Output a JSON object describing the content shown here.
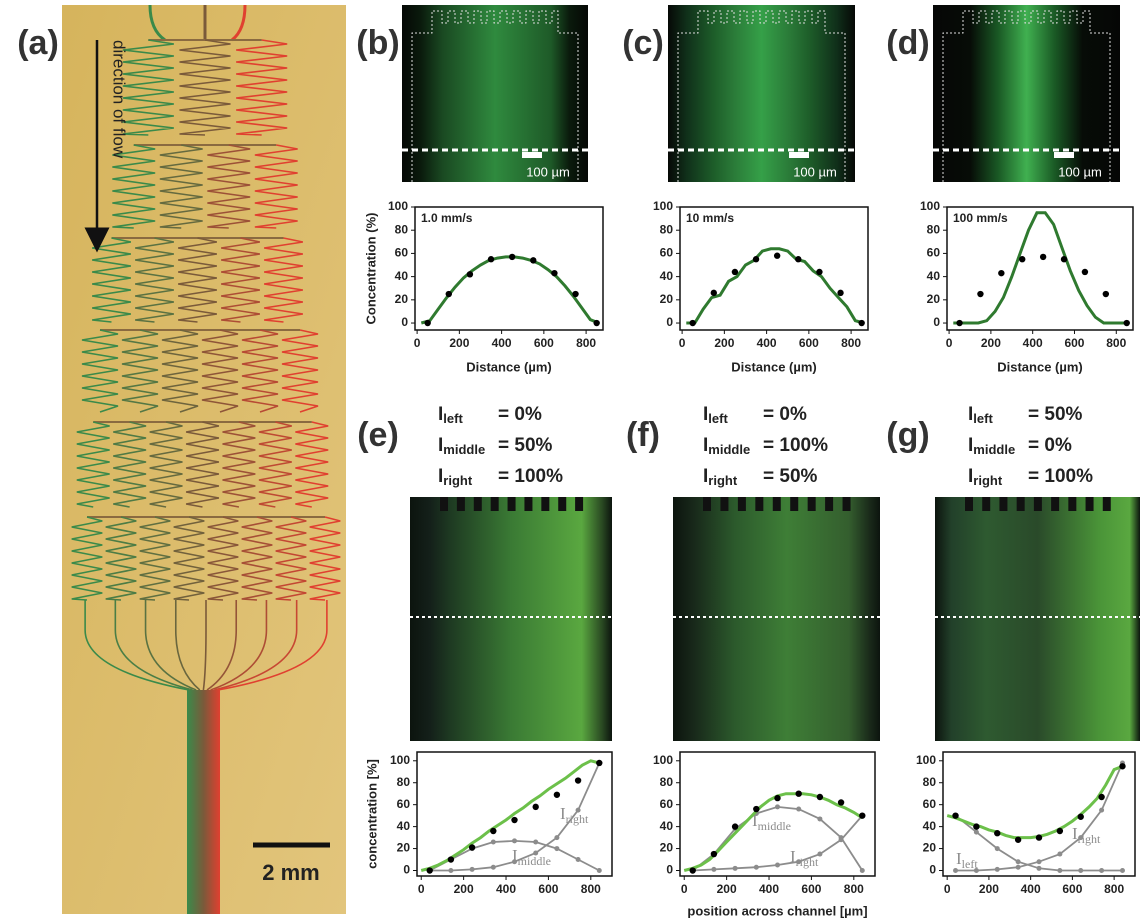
{
  "panel_a": {
    "label": "(a)",
    "flow": "direction of flow",
    "scale_bar": "2 mm"
  },
  "chart_data": [
    {
      "type": "line",
      "panel": "(b)",
      "scale_bar": "100 µm",
      "annotation": "1.0 mm/s",
      "xlabel": "Distance (µm)",
      "ylabel": "Concentration (%)",
      "xlim": [
        -10,
        880
      ],
      "ylim": [
        -6,
        100
      ],
      "xticks": [
        0,
        200,
        400,
        600,
        800
      ],
      "yticks": [
        0,
        20,
        40,
        60,
        80,
        100
      ],
      "series": [
        {
          "style": "line",
          "color": "#2f7a2f",
          "x": [
            20,
            60,
            100,
            140,
            180,
            220,
            260,
            300,
            340,
            380,
            420,
            460,
            500,
            540,
            580,
            620,
            660,
            700,
            740,
            780,
            820,
            860
          ],
          "values": [
            0,
            2,
            12,
            22,
            31,
            39,
            45,
            50,
            54,
            56,
            57,
            57,
            56,
            54,
            51,
            46,
            40,
            32,
            23,
            13,
            3,
            0
          ]
        },
        {
          "style": "dots",
          "color": "#000000",
          "x": [
            50,
            150,
            250,
            350,
            450,
            550,
            650,
            750,
            850
          ],
          "values": [
            0,
            25,
            42,
            55,
            57,
            54,
            43,
            25,
            0
          ]
        }
      ]
    },
    {
      "type": "line",
      "panel": "(c)",
      "scale_bar": "100 µm",
      "annotation": "10 mm/s",
      "xlabel": "Distance (µm)",
      "xlim": [
        -10,
        880
      ],
      "ylim": [
        -6,
        100
      ],
      "xticks": [
        0,
        200,
        400,
        600,
        800
      ],
      "yticks": [
        0,
        20,
        40,
        60,
        80,
        100
      ],
      "series": [
        {
          "style": "line",
          "color": "#2f7a2f",
          "x": [
            20,
            60,
            100,
            140,
            180,
            220,
            260,
            300,
            340,
            380,
            420,
            460,
            500,
            540,
            580,
            620,
            660,
            700,
            740,
            780,
            820,
            860
          ],
          "values": [
            0,
            0,
            12,
            22,
            24,
            36,
            40,
            50,
            54,
            62,
            64,
            64,
            62,
            55,
            53,
            45,
            40,
            30,
            22,
            14,
            2,
            0
          ]
        },
        {
          "style": "dots",
          "color": "#000000",
          "x": [
            50,
            150,
            250,
            350,
            450,
            550,
            650,
            750,
            850
          ],
          "values": [
            0,
            26,
            44,
            55,
            58,
            55,
            44,
            26,
            0
          ]
        }
      ]
    },
    {
      "type": "line",
      "panel": "(d)",
      "scale_bar": "100 µm",
      "annotation": "100 mm/s",
      "xlabel": "Distance (µm)",
      "xlim": [
        -10,
        880
      ],
      "ylim": [
        -6,
        100
      ],
      "xticks": [
        0,
        200,
        400,
        600,
        800
      ],
      "yticks": [
        0,
        20,
        40,
        60,
        80,
        100
      ],
      "series": [
        {
          "style": "line",
          "color": "#2f7a2f",
          "x": [
            20,
            60,
            100,
            140,
            180,
            220,
            260,
            300,
            340,
            380,
            420,
            460,
            500,
            540,
            580,
            620,
            660,
            700,
            740,
            780,
            820,
            860
          ],
          "values": [
            0,
            0,
            0,
            0,
            2,
            10,
            22,
            40,
            60,
            80,
            95,
            95,
            85,
            65,
            45,
            28,
            15,
            5,
            0,
            0,
            0,
            0
          ]
        },
        {
          "style": "dots",
          "color": "#000000",
          "x": [
            50,
            150,
            250,
            350,
            450,
            550,
            650,
            750,
            850
          ],
          "values": [
            0,
            25,
            43,
            55,
            57,
            55,
            44,
            25,
            0
          ]
        }
      ]
    },
    {
      "type": "line",
      "panel": "(e)",
      "ylabel": "concentration [%]",
      "conditions": [
        {
          "symbol": "I",
          "sub": "left",
          "text": "= 0%"
        },
        {
          "symbol": "I",
          "sub": "middle",
          "text": "= 50%"
        },
        {
          "symbol": "I",
          "sub": "right",
          "text": "= 100%"
        }
      ],
      "xlim": [
        -20,
        900
      ],
      "ylim": [
        -5,
        108
      ],
      "xticks": [
        0,
        200,
        400,
        600,
        800
      ],
      "yticks": [
        0,
        20,
        40,
        60,
        80,
        100
      ],
      "series": [
        {
          "style": "line-dots",
          "color": "#8c8c8c",
          "name": [
            "I",
            "right"
          ],
          "x": [
            40,
            140,
            240,
            340,
            440,
            540,
            640,
            740,
            840
          ],
          "values": [
            0,
            0,
            1,
            3,
            8,
            16,
            30,
            55,
            98
          ]
        },
        {
          "style": "line-dots",
          "color": "#8c8c8c",
          "name": [
            "I",
            "middle"
          ],
          "x": [
            40,
            140,
            240,
            340,
            440,
            540,
            640,
            740,
            840
          ],
          "values": [
            0,
            10,
            20,
            26,
            27,
            26,
            20,
            10,
            0
          ]
        },
        {
          "style": "line",
          "color": "#6cc04a",
          "x": [
            0,
            40,
            80,
            120,
            160,
            200,
            240,
            280,
            320,
            360,
            400,
            440,
            480,
            520,
            560,
            600,
            640,
            680,
            720,
            760,
            800,
            840
          ],
          "values": [
            0,
            2,
            5,
            9,
            14,
            19,
            25,
            30,
            36,
            41,
            46,
            52,
            57,
            63,
            68,
            74,
            79,
            84,
            90,
            96,
            100,
            98
          ]
        },
        {
          "style": "dots",
          "color": "#000000",
          "x": [
            40,
            140,
            240,
            340,
            440,
            540,
            640,
            740,
            840
          ],
          "values": [
            0,
            10,
            21,
            36,
            46,
            58,
            69,
            82,
            98
          ]
        }
      ]
    },
    {
      "type": "line",
      "panel": "(f)",
      "xlabel": "position across channel [µm]",
      "conditions": [
        {
          "symbol": "I",
          "sub": "left",
          "text": "= 0%"
        },
        {
          "symbol": "I",
          "sub": "middle",
          "text": "= 100%"
        },
        {
          "symbol": "I",
          "sub": "right",
          "text": "= 50%"
        }
      ],
      "xlim": [
        -20,
        900
      ],
      "ylim": [
        -5,
        108
      ],
      "xticks": [
        0,
        200,
        400,
        600,
        800
      ],
      "yticks": [
        0,
        20,
        40,
        60,
        80,
        100
      ],
      "series": [
        {
          "style": "line-dots",
          "color": "#8c8c8c",
          "name": [
            "I",
            "middle"
          ],
          "x": [
            40,
            140,
            240,
            340,
            440,
            540,
            640,
            740,
            840
          ],
          "values": [
            0,
            15,
            38,
            52,
            58,
            56,
            47,
            30,
            0
          ]
        },
        {
          "style": "line-dots",
          "color": "#8c8c8c",
          "name": [
            "I",
            "right"
          ],
          "x": [
            40,
            140,
            240,
            340,
            440,
            540,
            640,
            740,
            840
          ],
          "values": [
            0,
            1,
            2,
            3,
            5,
            8,
            15,
            28,
            50
          ]
        },
        {
          "style": "line",
          "color": "#6cc04a",
          "x": [
            0,
            40,
            80,
            120,
            160,
            200,
            240,
            280,
            320,
            360,
            400,
            440,
            480,
            520,
            560,
            600,
            640,
            680,
            720,
            760,
            800,
            840
          ],
          "values": [
            0,
            2,
            5,
            10,
            18,
            26,
            34,
            42,
            50,
            58,
            64,
            68,
            70,
            70,
            70,
            69,
            67,
            64,
            60,
            57,
            53,
            48
          ]
        },
        {
          "style": "dots",
          "color": "#000000",
          "x": [
            40,
            140,
            240,
            340,
            440,
            540,
            640,
            740,
            840
          ],
          "values": [
            0,
            15,
            40,
            56,
            66,
            70,
            67,
            62,
            50
          ]
        }
      ]
    },
    {
      "type": "line",
      "panel": "(g)",
      "conditions": [
        {
          "symbol": "I",
          "sub": "left",
          "text": "= 50%"
        },
        {
          "symbol": "I",
          "sub": "middle",
          "text": "= 0%"
        },
        {
          "symbol": "I",
          "sub": "right",
          "text": "= 100%"
        }
      ],
      "xlim": [
        -20,
        900
      ],
      "ylim": [
        -5,
        108
      ],
      "xticks": [
        0,
        200,
        400,
        600,
        800
      ],
      "yticks": [
        0,
        20,
        40,
        60,
        80,
        100
      ],
      "series": [
        {
          "style": "line-dots",
          "color": "#8c8c8c",
          "name": [
            "I",
            "left"
          ],
          "x": [
            40,
            140,
            240,
            340,
            440,
            540,
            640,
            740,
            840
          ],
          "values": [
            50,
            35,
            20,
            8,
            2,
            0,
            0,
            0,
            0
          ]
        },
        {
          "style": "line-dots",
          "color": "#8c8c8c",
          "name": [
            "I",
            "right"
          ],
          "x": [
            40,
            140,
            240,
            340,
            440,
            540,
            640,
            740,
            840
          ],
          "values": [
            0,
            0,
            1,
            3,
            8,
            15,
            30,
            55,
            98
          ]
        },
        {
          "style": "line",
          "color": "#6cc04a",
          "x": [
            0,
            40,
            80,
            120,
            160,
            200,
            240,
            280,
            320,
            360,
            400,
            440,
            480,
            520,
            560,
            600,
            640,
            680,
            720,
            760,
            800,
            840
          ],
          "values": [
            50,
            48,
            45,
            42,
            40,
            37,
            35,
            32,
            30,
            30,
            30,
            31,
            33,
            36,
            40,
            45,
            51,
            58,
            66,
            78,
            92,
            95
          ]
        },
        {
          "style": "dots",
          "color": "#000000",
          "x": [
            40,
            140,
            240,
            340,
            440,
            540,
            640,
            740,
            840
          ],
          "values": [
            50,
            40,
            34,
            28,
            30,
            36,
            49,
            67,
            95
          ]
        }
      ]
    }
  ]
}
